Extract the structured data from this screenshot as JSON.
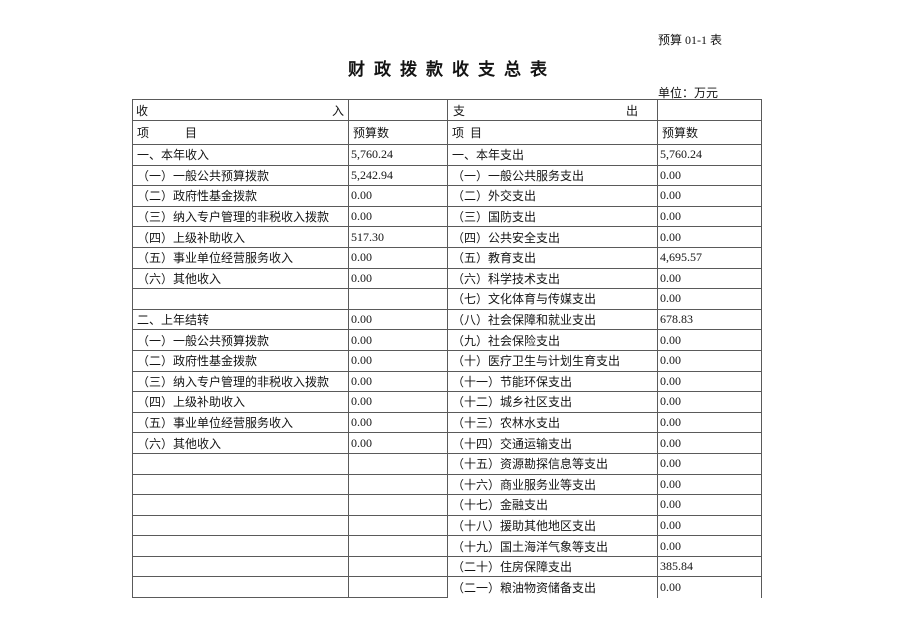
{
  "page": {
    "form_code": "预算 01-1 表",
    "title": "财政拨款收支总表",
    "unit_label": "单位：万元"
  },
  "table": {
    "headers": {
      "income_section": {
        "first": "收",
        "second": "入"
      },
      "expense_section": {
        "first": "支",
        "second": "出"
      },
      "income_item": "项　　　目",
      "income_budget": "预算数",
      "expense_item": "项  目",
      "expense_budget": "预算数"
    },
    "rows": [
      {
        "income_item": "一、本年收入",
        "income_amount": "5,760.24",
        "expense_item": "一、本年支出",
        "expense_amount": "5,760.24"
      },
      {
        "income_item": "（一）一般公共预算拨款",
        "income_amount": "5,242.94",
        "expense_item": "（一）一般公共服务支出",
        "expense_amount": "0.00"
      },
      {
        "income_item": "（二）政府性基金拨款",
        "income_amount": "0.00",
        "expense_item": "（二）外交支出",
        "expense_amount": "0.00"
      },
      {
        "income_item": "（三）纳入专户管理的非税收入拨款",
        "income_amount": "0.00",
        "expense_item": "（三）国防支出",
        "expense_amount": "0.00"
      },
      {
        "income_item": "（四）上级补助收入",
        "income_amount": "517.30",
        "expense_item": "（四）公共安全支出",
        "expense_amount": "0.00"
      },
      {
        "income_item": "（五）事业单位经营服务收入",
        "income_amount": "0.00",
        "expense_item": "（五）教育支出",
        "expense_amount": "4,695.57"
      },
      {
        "income_item": "（六）其他收入",
        "income_amount": "0.00",
        "expense_item": "（六）科学技术支出",
        "expense_amount": "0.00"
      },
      {
        "income_item": "",
        "income_amount": "",
        "expense_item": "（七）文化体育与传媒支出",
        "expense_amount": "0.00"
      },
      {
        "income_item": "二、上年结转",
        "income_amount": "0.00",
        "expense_item": "（八）社会保障和就业支出",
        "expense_amount": "678.83"
      },
      {
        "income_item": "（一）一般公共预算拨款",
        "income_amount": "0.00",
        "expense_item": "（九）社会保险支出",
        "expense_amount": "0.00"
      },
      {
        "income_item": "（二）政府性基金拨款",
        "income_amount": "0.00",
        "expense_item": "（十）医疗卫生与计划生育支出",
        "expense_amount": "0.00"
      },
      {
        "income_item": "（三）纳入专户管理的非税收入拨款",
        "income_amount": "0.00",
        "expense_item": "（十一）节能环保支出",
        "expense_amount": "0.00"
      },
      {
        "income_item": "（四）上级补助收入",
        "income_amount": "0.00",
        "expense_item": "（十二）城乡社区支出",
        "expense_amount": "0.00"
      },
      {
        "income_item": "（五）事业单位经营服务收入",
        "income_amount": "0.00",
        "expense_item": "（十三）农林水支出",
        "expense_amount": "0.00"
      },
      {
        "income_item": "（六）其他收入",
        "income_amount": "0.00",
        "expense_item": "（十四）交通运输支出",
        "expense_amount": "0.00"
      },
      {
        "income_item": "",
        "income_amount": "",
        "expense_item": "（十五）资源勘探信息等支出",
        "expense_amount": "0.00"
      },
      {
        "income_item": "",
        "income_amount": "",
        "expense_item": "（十六）商业服务业等支出",
        "expense_amount": "0.00"
      },
      {
        "income_item": "",
        "income_amount": "",
        "expense_item": "（十七）金融支出",
        "expense_amount": "0.00"
      },
      {
        "income_item": "",
        "income_amount": "",
        "expense_item": "（十八）援助其他地区支出",
        "expense_amount": "0.00"
      },
      {
        "income_item": "",
        "income_amount": "",
        "expense_item": "（十九）国土海洋气象等支出",
        "expense_amount": "0.00"
      },
      {
        "income_item": "",
        "income_amount": "",
        "expense_item": "（二十）住房保障支出",
        "expense_amount": "385.84"
      },
      {
        "income_item": "",
        "income_amount": "",
        "expense_item": "（二一）粮油物资储备支出",
        "expense_amount": "0.00"
      }
    ]
  }
}
